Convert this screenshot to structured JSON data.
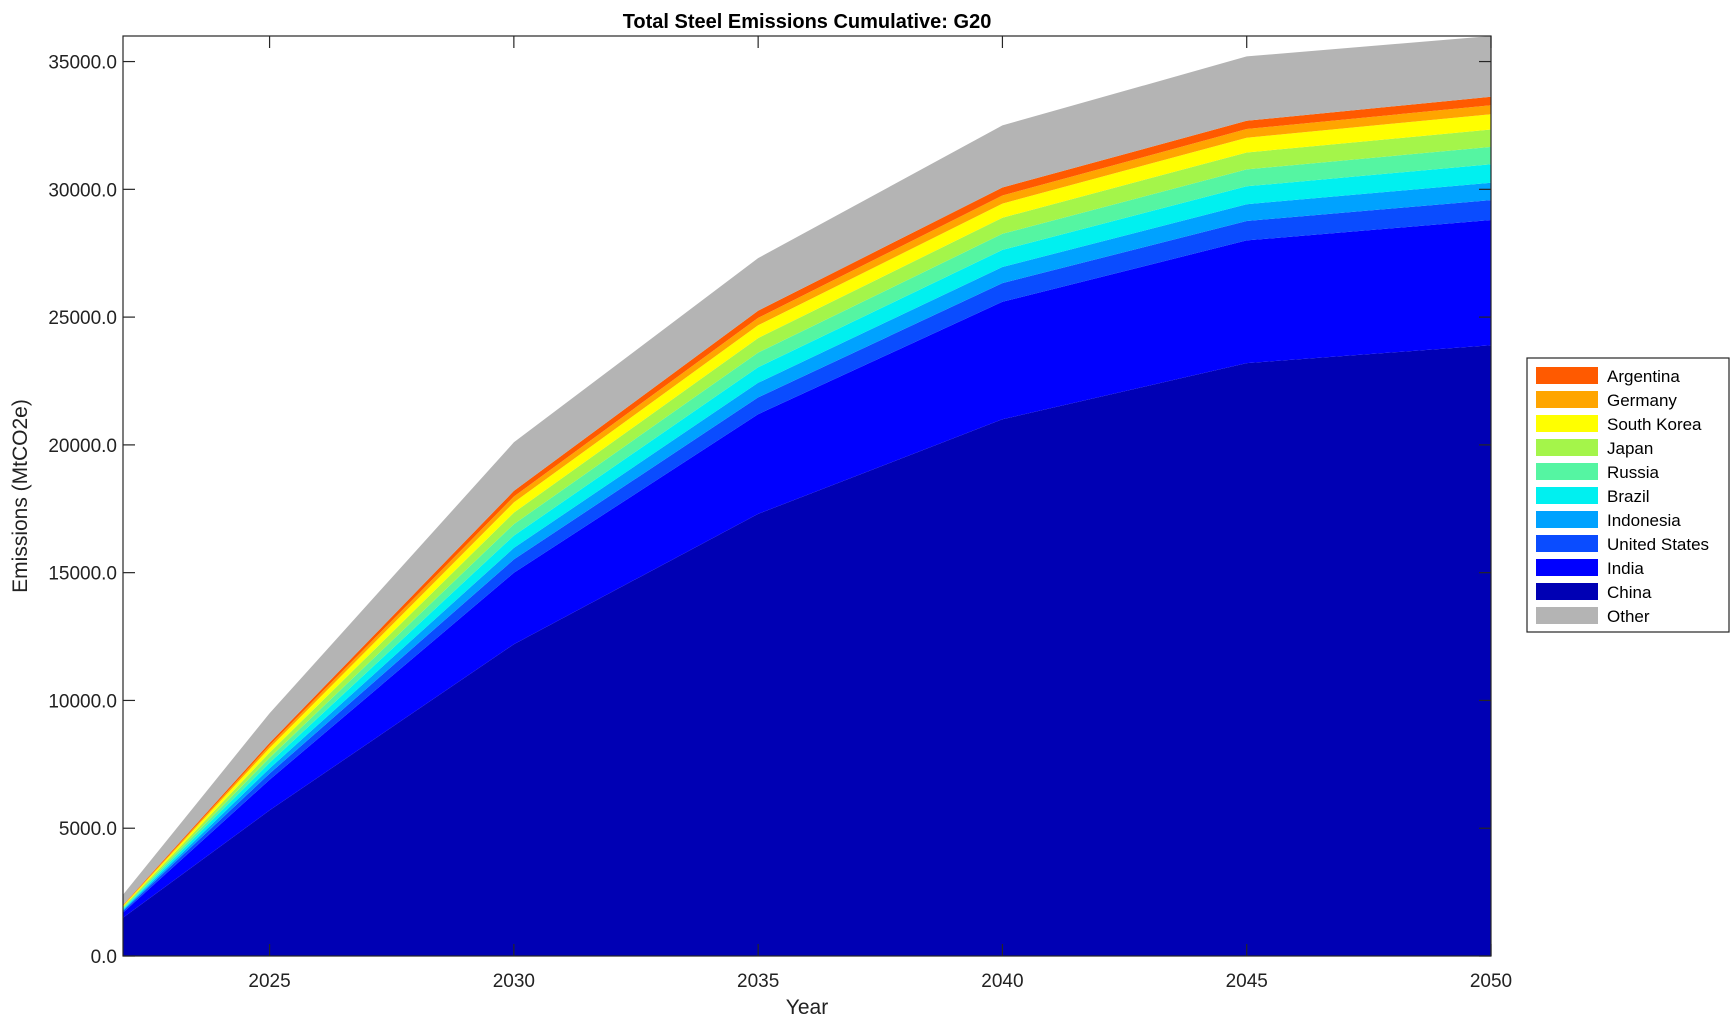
{
  "chart_data": {
    "type": "area",
    "stacked": true,
    "title": "Total Steel Emissions Cumulative: G20",
    "xlabel": "Year",
    "ylabel": "Emissions (MtCO2e)",
    "xlim": [
      2022,
      2050
    ],
    "ylim": [
      0,
      36000
    ],
    "xticks": [
      2025,
      2030,
      2035,
      2040,
      2045,
      2050
    ],
    "xtick_labels": [
      "2025",
      "2030",
      "2035",
      "2040",
      "2045",
      "2050"
    ],
    "yticks": [
      0,
      5000,
      10000,
      15000,
      20000,
      25000,
      30000,
      35000
    ],
    "ytick_labels": [
      "0.0",
      "5000.0",
      "10000.0",
      "15000.0",
      "20000.0",
      "25000.0",
      "30000.0",
      "35000.0"
    ],
    "grid": false,
    "legend_position": "right",
    "x": [
      2022,
      2025,
      2030,
      2035,
      2040,
      2045,
      2050
    ],
    "series": [
      {
        "name": "China",
        "color": "#0000b4",
        "values": [
          1500,
          5700,
          12200,
          17300,
          21000,
          23200,
          23900
        ]
      },
      {
        "name": "India",
        "color": "#0000ff",
        "values": [
          200,
          1200,
          2800,
          3900,
          4600,
          4800,
          4900
        ]
      },
      {
        "name": "United States",
        "color": "#0a4cff",
        "values": [
          60,
          240,
          520,
          660,
          730,
          760,
          780
        ]
      },
      {
        "name": "Indonesia",
        "color": "#00a2ff",
        "values": [
          40,
          200,
          450,
          570,
          630,
          660,
          680
        ]
      },
      {
        "name": "Brazil",
        "color": "#00f0f0",
        "values": [
          40,
          220,
          480,
          610,
          670,
          700,
          720
        ]
      },
      {
        "name": "Russia",
        "color": "#55f5a2",
        "values": [
          40,
          200,
          450,
          570,
          630,
          660,
          680
        ]
      },
      {
        "name": "Japan",
        "color": "#a4f54a",
        "values": [
          40,
          200,
          450,
          570,
          630,
          660,
          680
        ]
      },
      {
        "name": "South Korea",
        "color": "#ffff00",
        "values": [
          40,
          180,
          400,
          500,
          550,
          580,
          600
        ]
      },
      {
        "name": "Germany",
        "color": "#ffa500",
        "values": [
          20,
          100,
          230,
          290,
          320,
          340,
          350
        ]
      },
      {
        "name": "Argentina",
        "color": "#ff5a00",
        "values": [
          20,
          100,
          220,
          280,
          310,
          320,
          330
        ]
      },
      {
        "name": "Other",
        "color": "#b4b4b4",
        "values": [
          400,
          1160,
          1900,
          2060,
          2430,
          2520,
          2380
        ]
      }
    ],
    "legend_order": [
      "Argentina",
      "Germany",
      "South Korea",
      "Japan",
      "Russia",
      "Brazil",
      "Indonesia",
      "United States",
      "India",
      "China",
      "Other"
    ]
  }
}
